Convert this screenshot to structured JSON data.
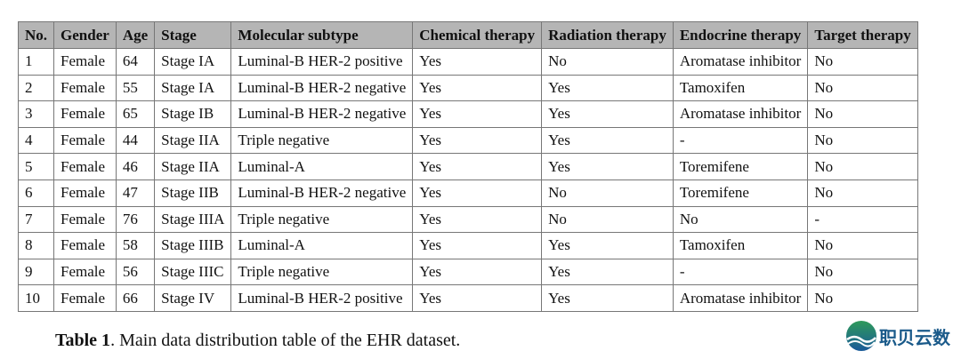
{
  "table": {
    "headers": [
      "No.",
      "Gender",
      "Age",
      "Stage",
      "Molecular subtype",
      "Chemical therapy",
      "Radiation therapy",
      "Endocrine therapy",
      "Target therapy"
    ],
    "rows": [
      [
        "1",
        "Female",
        "64",
        "Stage IA",
        "Luminal-B HER-2 positive",
        "Yes",
        "No",
        "Aromatase inhibitor",
        "No"
      ],
      [
        "2",
        "Female",
        "55",
        "Stage IA",
        "Luminal-B HER-2 negative",
        "Yes",
        "Yes",
        "Tamoxifen",
        "No"
      ],
      [
        "3",
        "Female",
        "65",
        "Stage IB",
        "Luminal-B HER-2 negative",
        "Yes",
        "Yes",
        "Aromatase inhibitor",
        "No"
      ],
      [
        "4",
        "Female",
        "44",
        "Stage IIA",
        "Triple negative",
        "Yes",
        "Yes",
        "-",
        "No"
      ],
      [
        "5",
        "Female",
        "46",
        "Stage IIA",
        "Luminal-A",
        "Yes",
        "Yes",
        "Toremifene",
        "No"
      ],
      [
        "6",
        "Female",
        "47",
        "Stage IIB",
        "Luminal-B HER-2 negative",
        "Yes",
        "No",
        "Toremifene",
        "No"
      ],
      [
        "7",
        "Female",
        "76",
        "Stage IIIA",
        "Triple negative",
        "Yes",
        "No",
        "No",
        "-"
      ],
      [
        "8",
        "Female",
        "58",
        "Stage IIIB",
        "Luminal-A",
        "Yes",
        "Yes",
        "Tamoxifen",
        "No"
      ],
      [
        "9",
        "Female",
        "56",
        "Stage IIIC",
        "Triple negative",
        "Yes",
        "Yes",
        "-",
        "No"
      ],
      [
        "10",
        "Female",
        "66",
        "Stage IV",
        "Luminal-B HER-2 positive",
        "Yes",
        "Yes",
        "Aromatase inhibitor",
        "No"
      ]
    ]
  },
  "caption": {
    "label": "Table 1",
    "text": ".  Main data distribution table of the EHR dataset."
  },
  "watermark": {
    "text": "职贝云数"
  },
  "colors": {
    "header_bg": "#b5b5b5",
    "border": "#777777",
    "logo": "#1a5a8a"
  }
}
